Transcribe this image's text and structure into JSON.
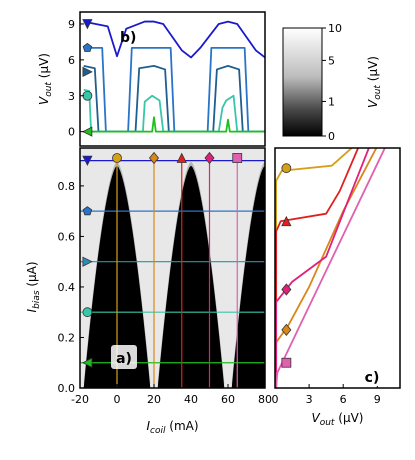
{
  "chart_data": [
    {
      "panel": "a",
      "label": "a)",
      "type": "heatmap",
      "xlabel_main": "I",
      "xlabel_sub": "coil",
      "xlabel_unit": " (mA)",
      "ylabel_main": "I",
      "ylabel_sub": "bias",
      "ylabel_unit": " (μA)",
      "xlim": [
        -20,
        80
      ],
      "ylim": [
        0,
        0.95
      ],
      "xticks": [
        "-20",
        "0",
        "20",
        "40",
        "60",
        "80"
      ],
      "xtick_values": [
        -20,
        0,
        20,
        40,
        60,
        80
      ],
      "yticks": [
        "0.0",
        "0.2",
        "0.4",
        "0.6",
        "0.8"
      ],
      "ytick_values": [
        0,
        0.2,
        0.4,
        0.6,
        0.8
      ],
      "superconducting_lobes": [
        {
          "center": 0,
          "half_width": 18,
          "peak_current": 0.88
        },
        {
          "center": 40,
          "half_width": 18,
          "peak_current": 0.88
        },
        {
          "center": 80,
          "half_width": 18,
          "peak_current": 0.88
        }
      ],
      "horizontal_cuts": [
        {
          "y": 0.9,
          "color": "#1a1acc",
          "marker": "triangle-down"
        },
        {
          "y": 0.7,
          "color": "#2a74c8",
          "marker": "pentagon"
        },
        {
          "y": 0.5,
          "color": "#2b8fb5",
          "marker": "triangle-right"
        },
        {
          "y": 0.3,
          "color": "#39c6a8",
          "marker": "circle"
        },
        {
          "y": 0.1,
          "color": "#1fbf1f",
          "marker": "triangle-left"
        }
      ],
      "vertical_cuts": [
        {
          "x": 0,
          "color": "#d4a017",
          "marker": "circle"
        },
        {
          "x": 20,
          "color": "#d9861a",
          "marker": "diamond"
        },
        {
          "x": 35,
          "color": "#e02020",
          "marker": "triangle-up"
        },
        {
          "x": 50,
          "color": "#e0207a",
          "marker": "diamond"
        },
        {
          "x": 65,
          "color": "#e060b0",
          "marker": "square"
        }
      ]
    },
    {
      "panel": "b",
      "label": "b)",
      "type": "line",
      "ylabel_main": "V",
      "ylabel_sub": "out",
      "ylabel_unit": " (μV)",
      "xlim": [
        -20,
        80
      ],
      "ylim": [
        -1.2,
        10
      ],
      "yticks": [
        "0",
        "3",
        "6",
        "9"
      ],
      "ytick_values": [
        0,
        3,
        6,
        9
      ],
      "series": [
        {
          "color": "#1a1acc",
          "marker": "triangle-down",
          "y0": 9,
          "x": [
            -18,
            -5,
            0,
            5,
            15,
            20,
            25,
            35,
            40,
            45,
            55,
            60,
            65,
            75,
            80
          ],
          "y": [
            9.2,
            8.8,
            6.3,
            8.6,
            9.2,
            9.2,
            9.0,
            6.8,
            6.2,
            7.0,
            9.0,
            9.2,
            9.0,
            6.8,
            6.2
          ]
        },
        {
          "color": "#2a74c8",
          "marker": "pentagon",
          "y0": 7,
          "x": [
            -18,
            -8,
            -6,
            6,
            8,
            20,
            29,
            31,
            49,
            51,
            60,
            69,
            71,
            80
          ],
          "y": [
            7.0,
            7.0,
            0.0,
            0.0,
            7.0,
            7.0,
            7.0,
            0.0,
            0.0,
            7.0,
            7.0,
            7.0,
            0.0,
            0.0
          ]
        },
        {
          "color": "#1f5f8f",
          "marker": "triangle-right",
          "y0": 5,
          "x": [
            -18,
            -12,
            -10,
            10,
            12,
            20,
            26,
            28,
            52,
            54,
            60,
            66,
            68,
            80
          ],
          "y": [
            5.5,
            5.3,
            0.0,
            0.0,
            5.3,
            5.5,
            5.2,
            0.0,
            0.0,
            5.2,
            5.5,
            5.2,
            0.0,
            0.0
          ]
        },
        {
          "color": "#39c6a8",
          "marker": "circle",
          "y0": 3,
          "x": [
            -18,
            -15,
            -14,
            14,
            15,
            19,
            23,
            25,
            55,
            57,
            59,
            63,
            65,
            80
          ],
          "y": [
            3.5,
            3.4,
            0.0,
            0.0,
            2.5,
            3.0,
            2.6,
            0.0,
            0.0,
            2.0,
            2.6,
            3.0,
            0.0,
            0.0
          ]
        },
        {
          "color": "#1fbf1f",
          "marker": "triangle-left",
          "y0": 0,
          "x": [
            -18,
            19,
            20,
            21,
            59,
            60,
            61,
            80
          ],
          "y": [
            0.0,
            0.0,
            1.2,
            0.0,
            0.0,
            1.0,
            0.0,
            0.0
          ]
        }
      ]
    },
    {
      "panel": "c",
      "label": "c)",
      "type": "line",
      "xlabel_main": "V",
      "xlabel_sub": "out",
      "xlabel_unit": " (μV)",
      "xlim": [
        0,
        11
      ],
      "ylim": [
        0,
        0.95
      ],
      "xticks": [
        "0",
        "3",
        "6",
        "9"
      ],
      "xtick_values": [
        0,
        3,
        6,
        9
      ],
      "series": [
        {
          "color": "#d4a017",
          "marker": "circle",
          "marker_at": [
            1,
            0.87
          ],
          "points": [
            [
              0.1,
              0.0
            ],
            [
              0.1,
              0.82
            ],
            [
              0.6,
              0.86
            ],
            [
              5.0,
              0.88
            ],
            [
              6.0,
              0.92
            ],
            [
              7.5,
              0.98
            ]
          ]
        },
        {
          "color": "#d9861a",
          "marker": "diamond",
          "marker_at": [
            1,
            0.23
          ],
          "points": [
            [
              0.1,
              0.0
            ],
            [
              0.1,
              0.18
            ],
            [
              1.2,
              0.25
            ],
            [
              3.0,
              0.4
            ],
            [
              6.0,
              0.7
            ],
            [
              9.5,
              1.0
            ]
          ]
        },
        {
          "color": "#e02020",
          "marker": "triangle-up",
          "marker_at": [
            1,
            0.66
          ],
          "points": [
            [
              0.1,
              0.0
            ],
            [
              0.1,
              0.62
            ],
            [
              0.5,
              0.66
            ],
            [
              4.5,
              0.69
            ],
            [
              5.7,
              0.78
            ],
            [
              7.6,
              0.98
            ]
          ]
        },
        {
          "color": "#e0207a",
          "marker": "diamond",
          "marker_at": [
            1,
            0.39
          ],
          "points": [
            [
              0.1,
              0.0
            ],
            [
              0.1,
              0.34
            ],
            [
              1.5,
              0.42
            ],
            [
              3.0,
              0.47
            ],
            [
              4.5,
              0.52
            ],
            [
              6.5,
              0.75
            ],
            [
              8.7,
              1.0
            ]
          ]
        },
        {
          "color": "#e060b0",
          "marker": "square",
          "marker_at": [
            1,
            0.1
          ],
          "points": [
            [
              0.1,
              0.0
            ],
            [
              0.2,
              0.06
            ],
            [
              10.2,
              1.0
            ]
          ]
        }
      ]
    },
    {
      "panel": "colorbar",
      "type": "colorbar",
      "label_main": "V",
      "label_sub": "out",
      "label_unit": " (μV)",
      "ticks": [
        "10",
        "5",
        "1",
        "0"
      ],
      "tick_fractions": [
        0.0,
        0.3,
        0.68,
        1.0
      ]
    }
  ]
}
